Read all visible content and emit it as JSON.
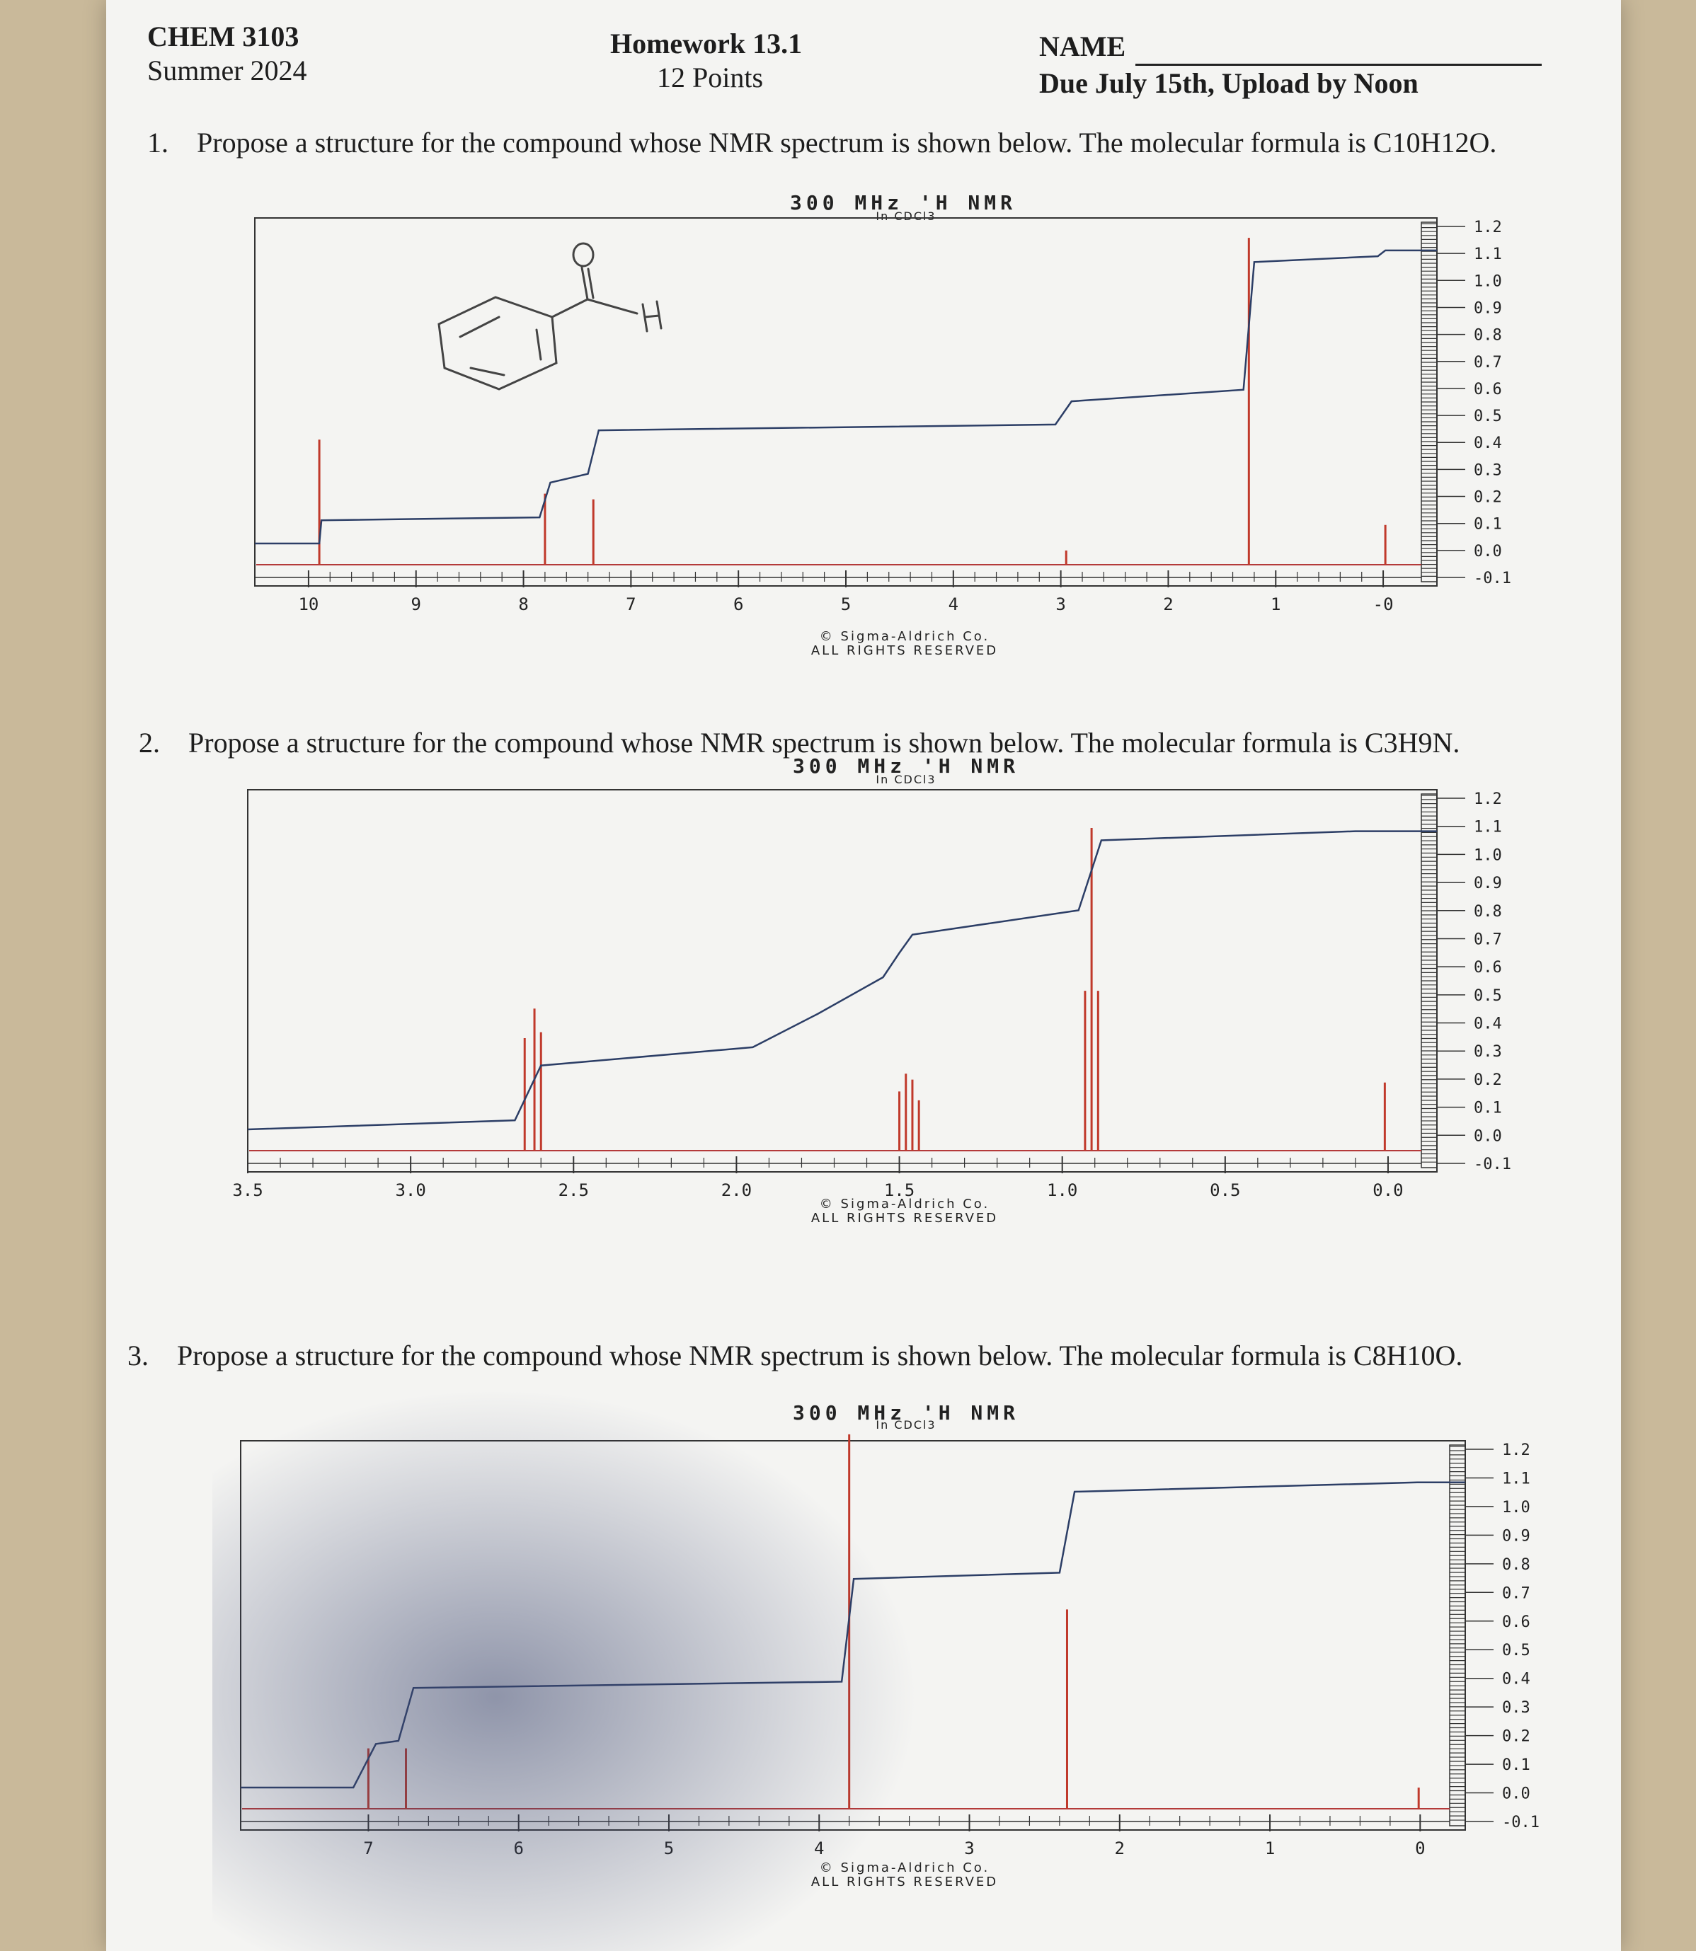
{
  "header": {
    "course": "CHEM 3103",
    "term": "Summer 2024",
    "assignment": "Homework 13.1",
    "points": "12 Points",
    "name_label": "NAME",
    "due": "Due July 15th, Upload by Noon"
  },
  "questions": [
    {
      "number": "1.",
      "text": "Propose a structure for the compound whose NMR spectrum is shown below. The molecular formula is C10H12O."
    },
    {
      "number": "2.",
      "text": "Propose a structure for the compound whose NMR spectrum is shown below. The molecular formula is C3H9N."
    },
    {
      "number": "3.",
      "text": "Propose a structure for the compound whose NMR spectrum is shown below. The molecular formula is C8H10O."
    }
  ],
  "spectrum_common": {
    "title": "300 MHz 'H NMR",
    "solvent": "In CDCl3",
    "credit_line1": "© Sigma-Aldrich Co.",
    "credit_line2": "ALL RIGHTS RESERVED"
  },
  "handwritten_sketch": "benzaldehyde-like ring with C=O and H",
  "chart_data": [
    {
      "type": "line",
      "title": "300 MHz 'H NMR",
      "x_ticks": [
        "10",
        "9",
        "8",
        "7",
        "6",
        "5",
        "4",
        "3",
        "2",
        "1",
        "-0"
      ],
      "y_ticks": [
        "1.2",
        "1.1",
        "1.0",
        "0.9",
        "0.8",
        "0.7",
        "0.6",
        "0.5",
        "0.4",
        "0.3",
        "0.2",
        "0.1",
        "0.0",
        "-0.1"
      ],
      "xlim": [
        10.5,
        -0.5
      ],
      "ylim": [
        -0.1,
        1.2
      ],
      "peaks": [
        {
          "ppm": 9.9,
          "height": 0.44
        },
        {
          "ppm": 7.8,
          "height": 0.25
        },
        {
          "ppm": 7.35,
          "height": 0.23
        },
        {
          "ppm": 2.95,
          "height": 0.05
        },
        {
          "ppm": 1.25,
          "height": 1.15
        },
        {
          "ppm": -0.02,
          "height": 0.14
        }
      ],
      "integral": [
        {
          "ppm": 10.5,
          "y": 0.0
        },
        {
          "ppm": 9.9,
          "y": 0.0
        },
        {
          "ppm": 9.88,
          "y": 0.08
        },
        {
          "ppm": 7.85,
          "y": 0.09
        },
        {
          "ppm": 7.75,
          "y": 0.21
        },
        {
          "ppm": 7.4,
          "y": 0.24
        },
        {
          "ppm": 7.3,
          "y": 0.39
        },
        {
          "ppm": 3.05,
          "y": 0.41
        },
        {
          "ppm": 2.9,
          "y": 0.49
        },
        {
          "ppm": 1.3,
          "y": 0.53
        },
        {
          "ppm": 1.2,
          "y": 0.97
        },
        {
          "ppm": 0.05,
          "y": 0.99
        },
        {
          "ppm": -0.02,
          "y": 1.01
        },
        {
          "ppm": -0.5,
          "y": 1.01
        }
      ]
    },
    {
      "type": "line",
      "title": "300 MHz 'H NMR",
      "x_ticks": [
        "3.5",
        "3.0",
        "2.5",
        "2.0",
        "1.5",
        "1.0",
        "0.5",
        "0.0"
      ],
      "y_ticks": [
        "1.2",
        "1.1",
        "1.0",
        "0.9",
        "0.8",
        "0.7",
        "0.6",
        "0.5",
        "0.4",
        "0.3",
        "0.2",
        "0.1",
        "0.0",
        "-0.1"
      ],
      "xlim": [
        3.5,
        -0.15
      ],
      "ylim": [
        -0.1,
        1.2
      ],
      "peaks": [
        {
          "ppm": 2.65,
          "height": 0.38
        },
        {
          "ppm": 2.62,
          "height": 0.48
        },
        {
          "ppm": 2.6,
          "height": 0.4
        },
        {
          "ppm": 1.5,
          "height": 0.2
        },
        {
          "ppm": 1.48,
          "height": 0.26
        },
        {
          "ppm": 1.46,
          "height": 0.24
        },
        {
          "ppm": 1.44,
          "height": 0.17
        },
        {
          "ppm": 0.93,
          "height": 0.54
        },
        {
          "ppm": 0.91,
          "height": 1.09
        },
        {
          "ppm": 0.89,
          "height": 0.54
        },
        {
          "ppm": 0.01,
          "height": 0.23
        }
      ],
      "integral": [
        {
          "ppm": 3.5,
          "y": 0.0
        },
        {
          "ppm": 2.68,
          "y": 0.03
        },
        {
          "ppm": 2.6,
          "y": 0.21
        },
        {
          "ppm": 1.95,
          "y": 0.27
        },
        {
          "ppm": 1.75,
          "y": 0.38
        },
        {
          "ppm": 1.55,
          "y": 0.5
        },
        {
          "ppm": 1.5,
          "y": 0.58
        },
        {
          "ppm": 1.46,
          "y": 0.64
        },
        {
          "ppm": 0.95,
          "y": 0.72
        },
        {
          "ppm": 0.88,
          "y": 0.95
        },
        {
          "ppm": 0.1,
          "y": 0.98
        },
        {
          "ppm": -0.15,
          "y": 0.98
        }
      ]
    },
    {
      "type": "line",
      "title": "300 MHz 'H NMR",
      "x_ticks": [
        "7",
        "6",
        "5",
        "4",
        "3",
        "2",
        "1",
        "0"
      ],
      "y_ticks": [
        "1.2",
        "1.1",
        "1.0",
        "0.9",
        "0.8",
        "0.7",
        "0.6",
        "0.5",
        "0.4",
        "0.3",
        "0.2",
        "0.1",
        "0.0",
        "-0.1"
      ],
      "xlim": [
        7.85,
        -0.3
      ],
      "ylim": [
        -0.1,
        1.2
      ],
      "peaks": [
        {
          "ppm": 7.0,
          "height": 0.2
        },
        {
          "ppm": 6.75,
          "height": 0.2
        },
        {
          "ppm": 3.8,
          "height": 1.24
        },
        {
          "ppm": 2.35,
          "height": 0.66
        },
        {
          "ppm": 0.01,
          "height": 0.07
        }
      ],
      "integral": [
        {
          "ppm": 7.85,
          "y": 0.0
        },
        {
          "ppm": 7.1,
          "y": 0.0
        },
        {
          "ppm": 6.95,
          "y": 0.14
        },
        {
          "ppm": 6.8,
          "y": 0.15
        },
        {
          "ppm": 6.7,
          "y": 0.32
        },
        {
          "ppm": 3.85,
          "y": 0.34
        },
        {
          "ppm": 3.77,
          "y": 0.67
        },
        {
          "ppm": 2.4,
          "y": 0.69
        },
        {
          "ppm": 2.3,
          "y": 0.95
        },
        {
          "ppm": 0.02,
          "y": 0.98
        },
        {
          "ppm": -0.3,
          "y": 0.98
        }
      ]
    }
  ]
}
